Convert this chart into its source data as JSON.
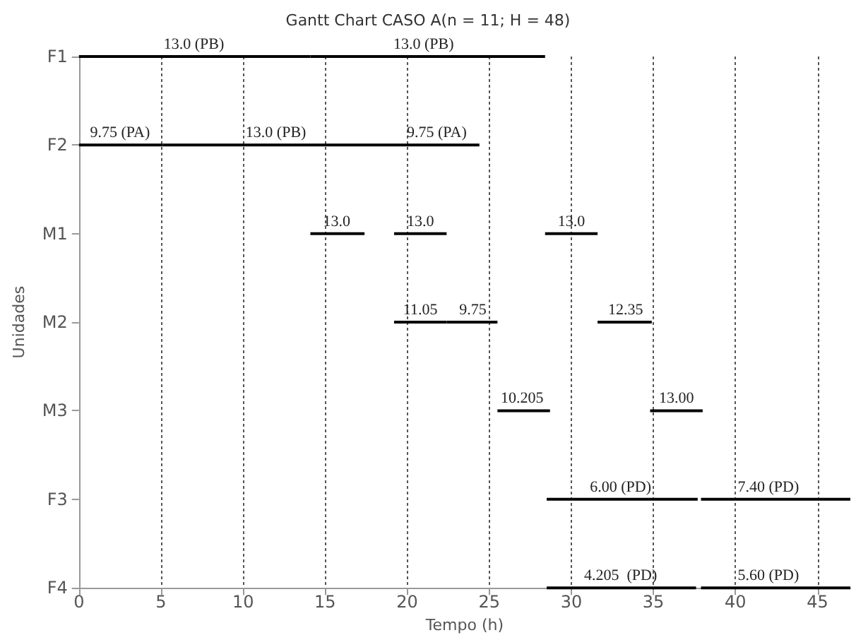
{
  "chart_data": {
    "type": "bar",
    "orientation": "horizontal",
    "title": "Gantt Chart CASO A(n = 11; H = 48)",
    "xlabel": "Tempo (h)",
    "ylabel": "Unidades",
    "categories": [
      "F1",
      "F2",
      "M1",
      "M2",
      "M3",
      "F3",
      "F4"
    ],
    "series": [
      {
        "color": "#000000",
        "base": [
          0,
          0,
          14.1,
          19.2,
          25.5,
          28.5,
          28.5
        ],
        "values": [
          14.1,
          5.1,
          3.3,
          3.2,
          3.2,
          9.2,
          9.1
        ]
      },
      {
        "color": "#000000",
        "base": [
          14.1,
          5.1,
          19.2,
          22.4,
          34.8,
          37.9,
          37.9
        ],
        "values": [
          14.3,
          14.1,
          3.2,
          3.1,
          3.2,
          9.1,
          9.1
        ]
      },
      {
        "color": "#000000",
        "base": [
          null,
          19.2,
          28.4,
          31.6,
          null,
          null,
          null
        ],
        "values": [
          null,
          5.2,
          3.2,
          3.3,
          null,
          null,
          null
        ]
      }
    ],
    "xlim": [
      0,
      47
    ],
    "xticks": [
      0,
      5,
      10,
      15,
      20,
      25,
      30,
      35,
      40,
      45
    ],
    "grid": "x",
    "annotations": [
      {
        "text": "13.0 (PB)",
        "x": 7,
        "y": "F1"
      },
      {
        "text": "13.0 (PB)",
        "x": 21,
        "y": "F1"
      },
      {
        "text": "9.75 (PA)",
        "x": 2.5,
        "y": "F2"
      },
      {
        "text": "13.0 (PB)",
        "x": 12,
        "y": "F2"
      },
      {
        "text": "9.75 (PA)",
        "x": 21.8,
        "y": "F2"
      },
      {
        "text": "13.0",
        "x": 15.7,
        "y": "M1"
      },
      {
        "text": "13.0",
        "x": 20.8,
        "y": "M1"
      },
      {
        "text": "13.0",
        "x": 30,
        "y": "M1"
      },
      {
        "text": "11.05",
        "x": 20.8,
        "y": "M2"
      },
      {
        "text": "9.75",
        "x": 24,
        "y": "M2"
      },
      {
        "text": "12.35",
        "x": 33.3,
        "y": "M2"
      },
      {
        "text": "10.205",
        "x": 27,
        "y": "M3"
      },
      {
        "text": "13.00",
        "x": 36.4,
        "y": "M3"
      },
      {
        "text": "6.00 (PD)",
        "x": 33,
        "y": "F3"
      },
      {
        "text": "7.40 (PD)",
        "x": 42,
        "y": "F3"
      },
      {
        "text": "4.205  (PD)",
        "x": 33,
        "y": "F4"
      },
      {
        "text": "5.60 (PD)",
        "x": 42,
        "y": "F4"
      }
    ]
  }
}
